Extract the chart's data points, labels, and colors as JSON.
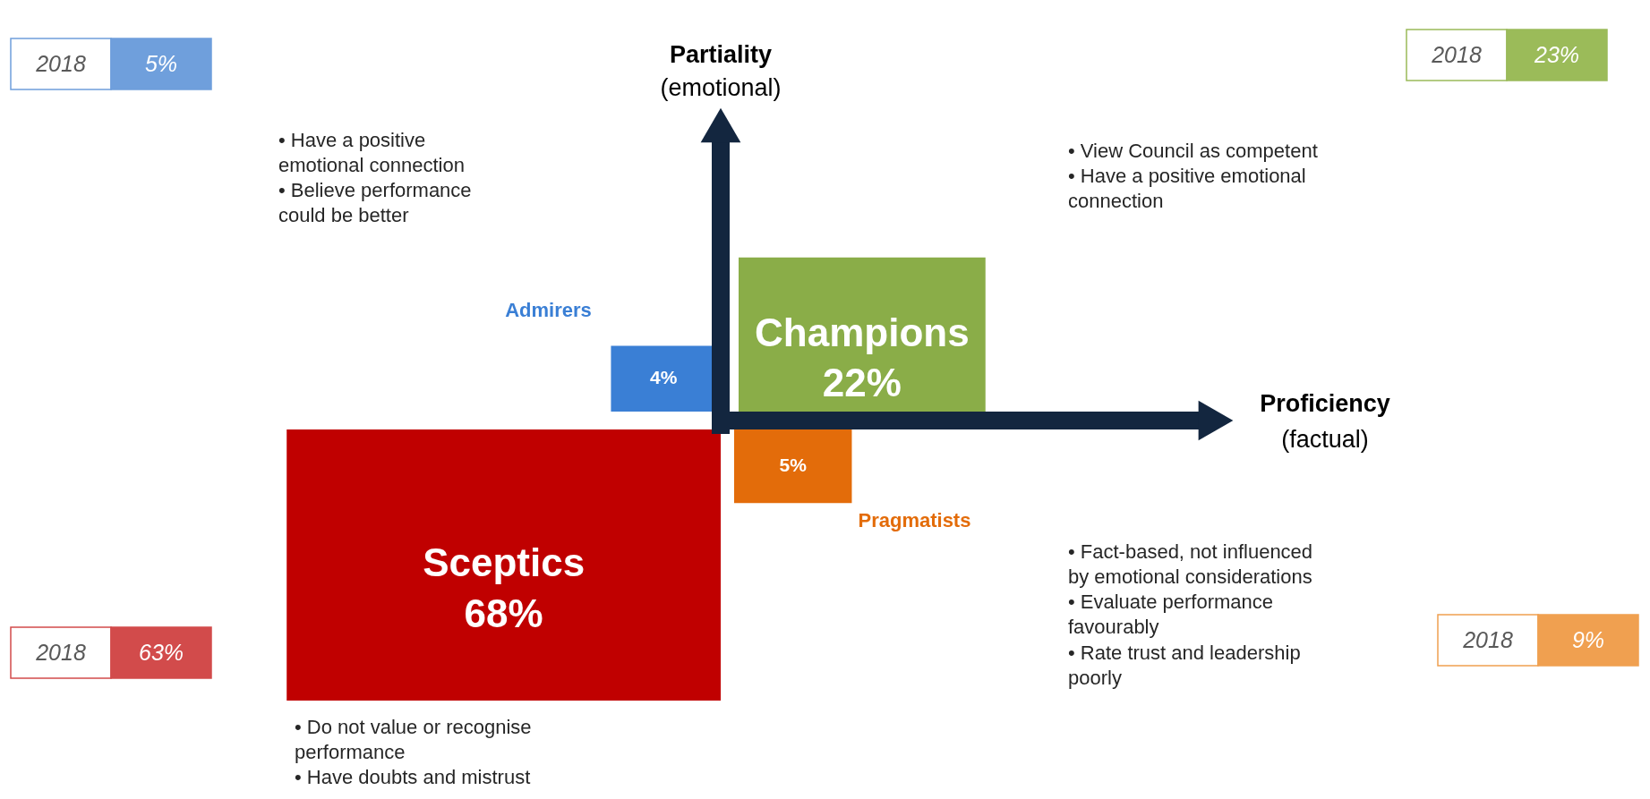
{
  "chart_data": {
    "type": "other",
    "xlabel": "Proficiency\n(factual)",
    "ylabel": "Partiality\n(emotional)",
    "categories": [
      "Admirers",
      "Champions",
      "Sceptics",
      "Pragmatists"
    ],
    "series": [
      {
        "values": [
          4,
          22,
          68,
          5
        ],
        "value_labels": [
          "4%",
          "22%",
          "68%",
          "5%"
        ],
        "colors": [
          "#3a7fd5",
          "#8aad48",
          "#c00000",
          "#e36c0a"
        ]
      },
      {
        "name": "2018",
        "values": [
          5,
          23,
          63,
          9
        ],
        "value_labels": [
          "5%",
          "23%",
          "63%",
          "9%"
        ],
        "colors": [
          "#6f9fdc",
          "#9bbb59",
          "#d24b4b",
          "#f0a050"
        ]
      }
    ],
    "annotations": [
      "•  Have a positive\n    emotional connection\n•  Believe performance\n    could be better",
      "•  View Council as competent\n•  Have a positive emotional\n    connection",
      "•  Do not value or recognise\n    performance\n•  Have doubts and mistrust",
      "•  Fact-based, not influenced\n    by emotional considerations\n•  Evaluate performance\n    favourably\n•  Rate trust and leadership\n    poorly"
    ]
  }
}
